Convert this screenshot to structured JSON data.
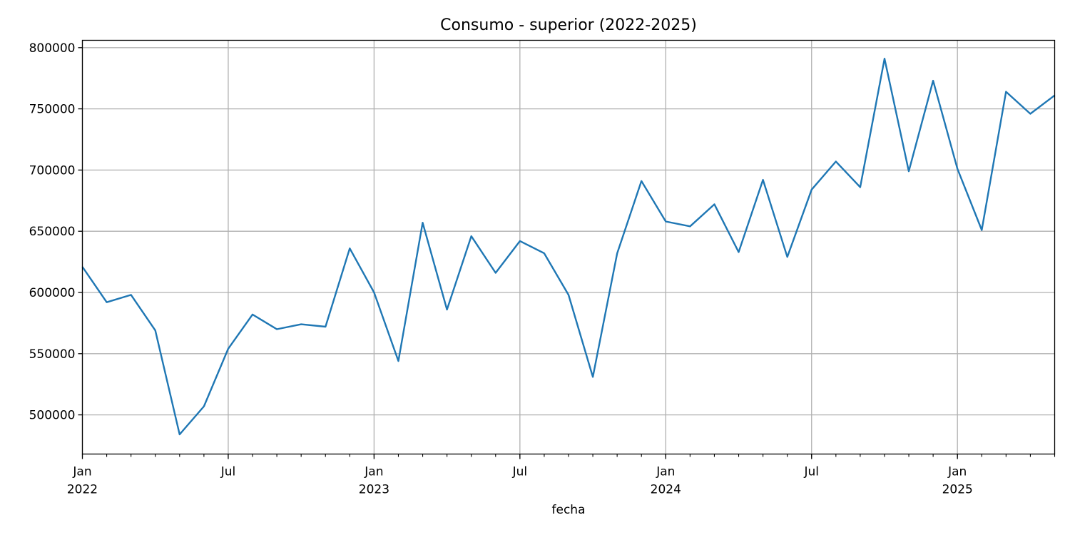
{
  "chart_data": {
    "type": "line",
    "title": "Consumo - superior (2022-2025)",
    "xlabel": "fecha",
    "ylabel": "",
    "grid": true,
    "colors": {
      "line": "#1f77b4",
      "grid": "#b0b0b0",
      "axis": "#000000"
    },
    "ylim": [
      468000,
      806000
    ],
    "xlim": [
      "2022-01",
      "2025-05"
    ],
    "y_ticks": [
      500000,
      550000,
      600000,
      650000,
      700000,
      750000,
      800000
    ],
    "x_major_ticks": [
      {
        "date": "2022-01",
        "label": "Jan",
        "year": "2022"
      },
      {
        "date": "2022-07",
        "label": "Jul",
        "year": ""
      },
      {
        "date": "2023-01",
        "label": "Jan",
        "year": "2023"
      },
      {
        "date": "2023-07",
        "label": "Jul",
        "year": ""
      },
      {
        "date": "2024-01",
        "label": "Jan",
        "year": "2024"
      },
      {
        "date": "2024-07",
        "label": "Jul",
        "year": ""
      },
      {
        "date": "2025-01",
        "label": "Jan",
        "year": "2025"
      }
    ],
    "series": [
      {
        "x": [
          "2022-01",
          "2022-02",
          "2022-03",
          "2022-04",
          "2022-05",
          "2022-06",
          "2022-07",
          "2022-08",
          "2022-09",
          "2022-10",
          "2022-11",
          "2022-12",
          "2023-01",
          "2023-02",
          "2023-03",
          "2023-04",
          "2023-05",
          "2023-06",
          "2023-07",
          "2023-08",
          "2023-09",
          "2023-10",
          "2023-11",
          "2023-12",
          "2024-01",
          "2024-02",
          "2024-03",
          "2024-04",
          "2024-05",
          "2024-06",
          "2024-07",
          "2024-08",
          "2024-09",
          "2024-10",
          "2024-11",
          "2024-12",
          "2025-01",
          "2025-02",
          "2025-03",
          "2025-04",
          "2025-05"
        ],
        "values": [
          621000,
          592000,
          598000,
          569000,
          484000,
          507000,
          554000,
          582000,
          570000,
          574000,
          572000,
          636000,
          600000,
          544000,
          657000,
          586000,
          646000,
          616000,
          642000,
          632000,
          598000,
          531000,
          632000,
          691000,
          658000,
          654000,
          672000,
          633000,
          692000,
          629000,
          684000,
          707000,
          686000,
          791000,
          699000,
          773000,
          701000,
          651000,
          764000,
          746000,
          761000
        ]
      }
    ]
  }
}
